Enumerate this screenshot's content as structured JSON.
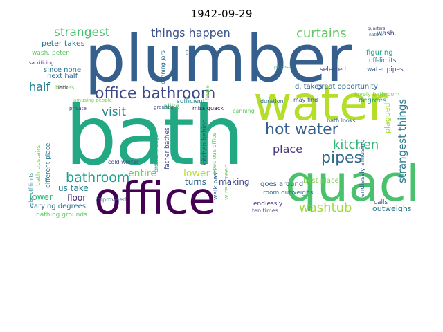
{
  "figure": {
    "title": "1942-09-29"
  },
  "wordcloud": {
    "words": [
      {
        "text": "plumber",
        "color": "#355f8d"
      },
      {
        "text": "bath",
        "color": "#23a884"
      },
      {
        "text": "water",
        "color": "#b5de2b"
      },
      {
        "text": "quack",
        "color": "#4ac16d"
      },
      {
        "text": "office",
        "color": "#440154"
      },
      {
        "text": "office bathroom",
        "color": "#3e4989"
      },
      {
        "text": "hot water",
        "color": "#355f8d"
      },
      {
        "text": "pipes",
        "color": "#31688e"
      },
      {
        "text": "kitchen",
        "color": "#35b779"
      },
      {
        "text": "bathroom",
        "color": "#1f9e89"
      },
      {
        "text": "washtub",
        "color": "#a2da37"
      },
      {
        "text": "curtains",
        "color": "#5ec962"
      },
      {
        "text": "strangest",
        "color": "#46c06f"
      },
      {
        "text": "things happen",
        "color": "#3b528b"
      },
      {
        "text": "strangest things",
        "color": "#2a788e"
      },
      {
        "text": "place",
        "color": "#46327e"
      },
      {
        "text": "visit",
        "color": "#26828e"
      },
      {
        "text": "half",
        "color": "#26828e"
      },
      {
        "text": "entire",
        "color": "#6ece58"
      },
      {
        "text": "lower",
        "color": "#b5de2b"
      },
      {
        "text": "turns",
        "color": "#31688e"
      },
      {
        "text": "making",
        "color": "#414487"
      },
      {
        "text": "us take",
        "color": "#26828e"
      },
      {
        "text": "floor",
        "color": "#482878"
      },
      {
        "text": "lower",
        "color": "#35b779"
      },
      {
        "text": "outweighs",
        "color": "#2a788e"
      },
      {
        "text": "wash.",
        "color": "#3e4989"
      },
      {
        "text": "peter takes",
        "color": "#2c728e"
      },
      {
        "text": "next half",
        "color": "#31688e"
      },
      {
        "text": "wash. peter",
        "color": "#5ec962"
      },
      {
        "text": "since none",
        "color": "#2a788e"
      },
      {
        "text": "great opportunity",
        "color": "#31688e"
      },
      {
        "text": "d. takes",
        "color": "#355f8d"
      },
      {
        "text": "degrees",
        "color": "#1f9e89"
      },
      {
        "text": "selected",
        "color": "#3e4989"
      },
      {
        "text": "figuring",
        "color": "#20a486"
      },
      {
        "text": "off-limits",
        "color": "#2c728e"
      },
      {
        "text": "water pipes",
        "color": "#3b528b"
      },
      {
        "text": "plagued",
        "color": "#a2da37"
      },
      {
        "text": "best place",
        "color": "#7ad151"
      },
      {
        "text": "goes around",
        "color": "#31688e"
      },
      {
        "text": "room outweighs",
        "color": "#2a788e"
      },
      {
        "text": "endlessly",
        "color": "#46327e"
      },
      {
        "text": "varying degrees",
        "color": "#2c728e"
      },
      {
        "text": "bathing grounds",
        "color": "#5ec962"
      },
      {
        "text": "ten times",
        "color": "#3e4989"
      },
      {
        "text": "different place",
        "color": "#2c728e"
      },
      {
        "text": "bath upstairs",
        "color": "#7ad151"
      },
      {
        "text": "improvised",
        "color": "#2a788e"
      },
      {
        "text": "cold winter",
        "color": "#3e4989"
      },
      {
        "text": "ordinary days",
        "color": "#23a884"
      },
      {
        "text": "father bathes",
        "color": "#414487"
      },
      {
        "text": "kitchen behind",
        "color": "#3b528b"
      },
      {
        "text": "walk past",
        "color": "#355f8d"
      },
      {
        "text": "wire screen",
        "color": "#7ad151"
      },
      {
        "text": "alike",
        "color": "#46c06f"
      },
      {
        "text": "sufficient",
        "color": "#25848e"
      },
      {
        "text": "miss quack",
        "color": "#440154"
      },
      {
        "text": "canning",
        "color": "#5ec962"
      },
      {
        "text": "canning jars",
        "color": "#31688e"
      },
      {
        "text": "grounds",
        "color": "#3b528b"
      },
      {
        "text": "bathes",
        "color": "#7ad151"
      },
      {
        "text": "may find",
        "color": "#3e4989"
      },
      {
        "text": "bath looks",
        "color": "#31688e"
      },
      {
        "text": "lovely bathroom",
        "color": "#7ad151"
      },
      {
        "text": "endlessly amusing",
        "color": "#31688e"
      },
      {
        "text": "calls",
        "color": "#3b528b"
      },
      {
        "text": "duration",
        "color": "#2c728e"
      },
      {
        "text": "spacious office",
        "color": "#5ec962"
      },
      {
        "text": "also off-limits",
        "color": "#2a788e"
      },
      {
        "text": "freeze",
        "color": "#7ad151"
      },
      {
        "text": "amusing people",
        "color": "#7ad151"
      },
      {
        "text": "private",
        "color": "#46327e"
      },
      {
        "text": "lock",
        "color": "#440154"
      },
      {
        "text": "sacrificing",
        "color": "#482878"
      },
      {
        "text": "quarters",
        "color": "#3e4989"
      },
      {
        "text": "nature",
        "color": "#2c728e"
      },
      {
        "text": "gases",
        "color": "#31688e"
      },
      {
        "text": "purpose",
        "color": "#35b779"
      }
    ]
  }
}
